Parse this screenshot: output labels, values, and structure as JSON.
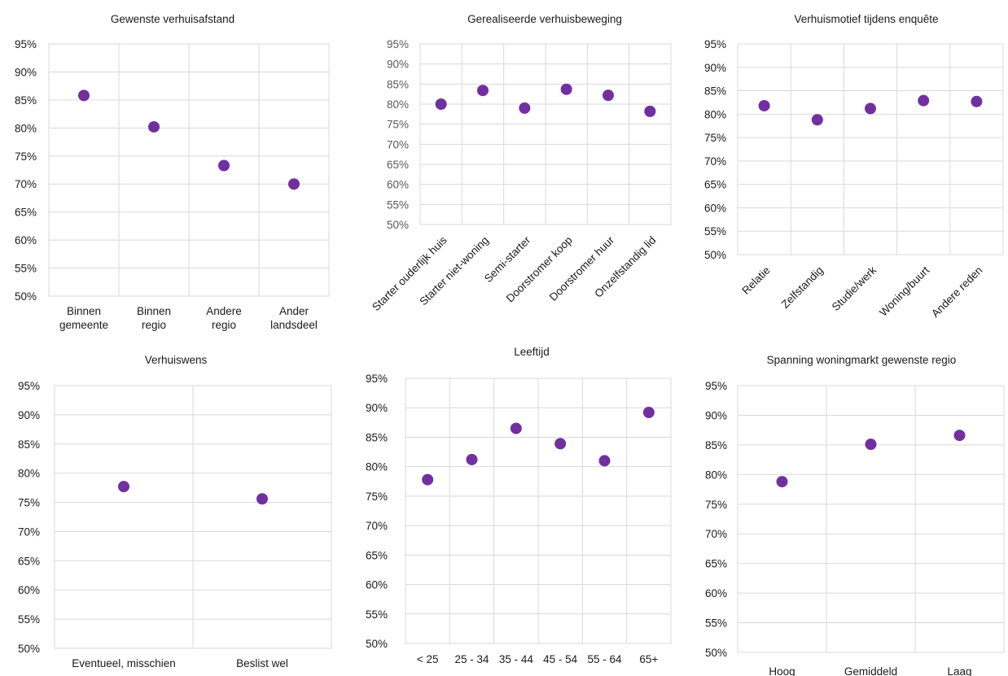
{
  "chart_data": [
    {
      "type": "scatter",
      "title": "Gewenste verhuisafstand",
      "categories": [
        "Binnen gemeente",
        "Binnen regio",
        "Andere regio",
        "Ander landsdeel"
      ],
      "category_lines": [
        [
          "Binnen",
          "gemeente"
        ],
        [
          "Binnen",
          "regio"
        ],
        [
          "Andere",
          "regio"
        ],
        [
          "Ander",
          "landsdeel"
        ]
      ],
      "values": [
        85.8,
        80.2,
        73.3,
        70.0
      ],
      "y_ticks": [
        "50%",
        "55%",
        "60%",
        "65%",
        "70%",
        "75%",
        "80%",
        "85%",
        "90%",
        "95%"
      ],
      "ylim": [
        50,
        95
      ],
      "grid": true,
      "legend": "none",
      "marker_color": "#7030a0",
      "label_rotation": 0
    },
    {
      "type": "scatter",
      "title": "Gerealiseerde verhuisbeweging",
      "categories": [
        "Starter ouderlijk huis",
        "Starter niet-woning",
        "Semi-starter",
        "Doorstromer koop",
        "Doorstromer huur",
        "Onzelfstandig lid"
      ],
      "category_lines": [
        [
          "Starter ouderlijk huis"
        ],
        [
          "Starter niet-woning"
        ],
        [
          "Semi-starter"
        ],
        [
          "Doorstromer koop"
        ],
        [
          "Doorstromer huur"
        ],
        [
          "Onzelfstandig lid"
        ]
      ],
      "values": [
        80.0,
        83.4,
        79.0,
        83.7,
        82.2,
        78.2
      ],
      "y_ticks": [
        "50%",
        "55%",
        "60%",
        "65%",
        "70%",
        "75%",
        "80%",
        "85%",
        "90%",
        "95%"
      ],
      "ylim": [
        50,
        95
      ],
      "grid": true,
      "legend": "none",
      "marker_color": "#7030a0",
      "label_rotation": -45,
      "y_label_color": "#595959"
    },
    {
      "type": "scatter",
      "title": "Verhuismotief tijdens enquête",
      "categories": [
        "Relatie",
        "Zelfstandig",
        "Studie/werk",
        "Woning/buurt",
        "Andere reden"
      ],
      "category_lines": [
        [
          "Relatie"
        ],
        [
          "Zelfstandig"
        ],
        [
          "Studie/werk"
        ],
        [
          "Woning/buurt"
        ],
        [
          "Andere reden"
        ]
      ],
      "values": [
        81.8,
        78.8,
        81.2,
        82.9,
        82.7
      ],
      "y_ticks": [
        "50%",
        "55%",
        "60%",
        "65%",
        "70%",
        "75%",
        "80%",
        "85%",
        "90%",
        "95%"
      ],
      "ylim": [
        50,
        95
      ],
      "grid": true,
      "legend": "none",
      "marker_color": "#7030a0",
      "label_rotation": -45
    },
    {
      "type": "scatter",
      "title": "Verhuiswens",
      "categories": [
        "Eventueel, misschien",
        "Beslist wel"
      ],
      "category_lines": [
        [
          "Eventueel, misschien"
        ],
        [
          "Beslist wel"
        ]
      ],
      "values": [
        77.7,
        75.6
      ],
      "y_ticks": [
        "50%",
        "55%",
        "60%",
        "65%",
        "70%",
        "75%",
        "80%",
        "85%",
        "90%",
        "95%"
      ],
      "ylim": [
        50,
        95
      ],
      "grid": true,
      "legend": "none",
      "marker_color": "#7030a0",
      "label_rotation": 0
    },
    {
      "type": "scatter",
      "title": "Leeftijd",
      "categories": [
        "< 25",
        "25 - 34",
        "35 - 44",
        "45 - 54",
        "55 - 64",
        "65+"
      ],
      "category_lines": [
        [
          "< 25"
        ],
        [
          "25 - 34"
        ],
        [
          "35 - 44"
        ],
        [
          "45 - 54"
        ],
        [
          "55 - 64"
        ],
        [
          "65+"
        ]
      ],
      "values": [
        77.8,
        81.2,
        86.5,
        83.9,
        81.0,
        89.2
      ],
      "y_ticks": [
        "50%",
        "55%",
        "60%",
        "65%",
        "70%",
        "75%",
        "80%",
        "85%",
        "90%",
        "95%"
      ],
      "ylim": [
        50,
        95
      ],
      "grid": true,
      "legend": "none",
      "marker_color": "#7030a0",
      "label_rotation": 0
    },
    {
      "type": "scatter",
      "title": "Spanning woningmarkt gewenste regio",
      "categories": [
        "Hoog",
        "Gemiddeld",
        "Laag"
      ],
      "category_lines": [
        [
          "Hoog"
        ],
        [
          "Gemiddeld"
        ],
        [
          "Laag"
        ]
      ],
      "values": [
        78.8,
        85.1,
        86.6
      ],
      "y_ticks": [
        "50%",
        "55%",
        "60%",
        "65%",
        "70%",
        "75%",
        "80%",
        "85%",
        "90%",
        "95%"
      ],
      "ylim": [
        50,
        95
      ],
      "grid": true,
      "legend": "none",
      "marker_color": "#7030a0",
      "label_rotation": 0
    }
  ]
}
